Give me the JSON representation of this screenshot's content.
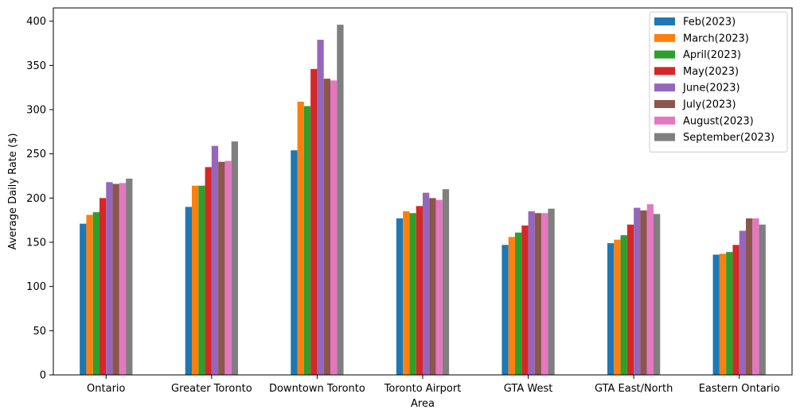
{
  "chart_data": {
    "type": "bar",
    "title": "",
    "xlabel": "Area",
    "ylabel": "Average Daily Rate ($)",
    "ylim": [
      0,
      415
    ],
    "yticks": [
      0,
      50,
      100,
      150,
      200,
      250,
      300,
      350,
      400
    ],
    "grid": false,
    "legend_position": "top-right",
    "categories": [
      "Ontario",
      "Greater Toronto",
      "Downtown Toronto",
      "Toronto Airport",
      "GTA West",
      "GTA East/North",
      "Eastern Ontario"
    ],
    "series": [
      {
        "name": "Feb(2023)",
        "color": "#1f77b4",
        "values": [
          171,
          190,
          254,
          177,
          147,
          149,
          136
        ]
      },
      {
        "name": "March(2023)",
        "color": "#ff7f0e",
        "values": [
          181,
          214,
          309,
          185,
          156,
          153,
          137
        ]
      },
      {
        "name": "April(2023)",
        "color": "#2ca02c",
        "values": [
          184,
          214,
          304,
          183,
          161,
          158,
          139
        ]
      },
      {
        "name": "May(2023)",
        "color": "#d62728",
        "values": [
          200,
          235,
          346,
          191,
          169,
          170,
          147
        ]
      },
      {
        "name": "June(2023)",
        "color": "#9467bd",
        "values": [
          218,
          259,
          379,
          206,
          185,
          189,
          163
        ]
      },
      {
        "name": "July(2023)",
        "color": "#8c564b",
        "values": [
          216,
          241,
          335,
          200,
          183,
          186,
          177
        ]
      },
      {
        "name": "August(2023)",
        "color": "#e377c2",
        "values": [
          217,
          242,
          333,
          198,
          183,
          193,
          177
        ]
      },
      {
        "name": "September(2023)",
        "color": "#7f7f7f",
        "values": [
          222,
          264,
          396,
          210,
          188,
          182,
          170
        ]
      }
    ]
  }
}
